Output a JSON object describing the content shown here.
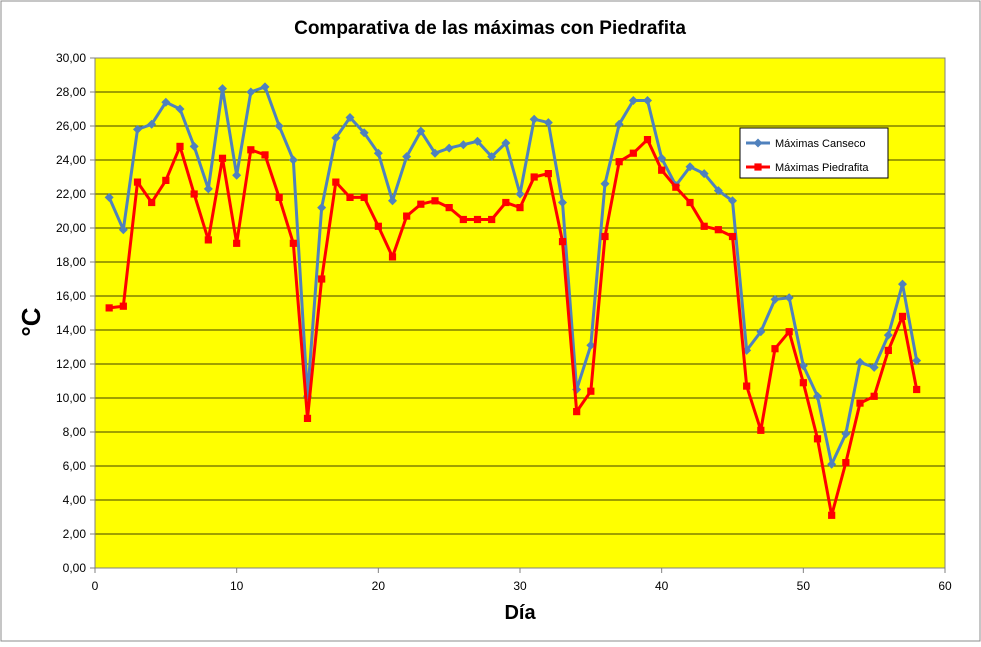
{
  "chart_data": {
    "type": "line",
    "title": "Comparativa de las máximas con Piedrafita",
    "xlabel": "Día",
    "ylabel": "°C",
    "xlim": [
      0,
      60
    ],
    "ylim": [
      0,
      30
    ],
    "x_ticks": [
      0,
      10,
      20,
      30,
      40,
      50,
      60
    ],
    "x_tick_labels": [
      "0",
      "10",
      "20",
      "30",
      "40",
      "50",
      "60"
    ],
    "y_ticks": [
      0,
      2,
      4,
      6,
      8,
      10,
      12,
      14,
      16,
      18,
      20,
      22,
      24,
      26,
      28,
      30
    ],
    "y_tick_labels": [
      "0,00",
      "2,00",
      "4,00",
      "6,00",
      "8,00",
      "10,00",
      "12,00",
      "14,00",
      "16,00",
      "18,00",
      "20,00",
      "22,00",
      "24,00",
      "26,00",
      "28,00",
      "30,00"
    ],
    "grid": "horizontal",
    "legend_position": "right",
    "plot_background": "#FFFF00",
    "x": [
      1,
      2,
      3,
      4,
      5,
      6,
      7,
      8,
      9,
      10,
      11,
      12,
      13,
      14,
      15,
      16,
      17,
      18,
      19,
      20,
      21,
      22,
      23,
      24,
      25,
      26,
      27,
      28,
      29,
      30,
      31,
      32,
      33,
      34,
      35,
      36,
      37,
      38,
      39,
      40,
      41,
      42,
      43,
      44,
      45,
      46,
      47,
      48,
      49,
      50,
      51,
      52,
      53,
      54,
      55,
      56,
      57,
      58
    ],
    "series": [
      {
        "name": "Máximas Canseco",
        "color": "#4F81BD",
        "marker": "diamond",
        "values": [
          21.8,
          19.9,
          25.8,
          26.1,
          27.4,
          27.0,
          24.8,
          22.3,
          28.2,
          23.1,
          28.0,
          28.3,
          26.0,
          24.0,
          10.1,
          21.2,
          25.3,
          26.5,
          25.6,
          24.4,
          21.6,
          24.2,
          25.7,
          24.4,
          24.7,
          24.9,
          25.1,
          24.2,
          25.0,
          22.0,
          26.4,
          26.2,
          21.5,
          10.5,
          13.1,
          22.6,
          26.1,
          27.5,
          27.5,
          24.1,
          22.5,
          23.6,
          23.2,
          22.2,
          21.6,
          12.8,
          13.9,
          15.8,
          15.9,
          11.9,
          10.1,
          6.1,
          7.9,
          12.1,
          11.8,
          13.7,
          16.7,
          12.2
        ]
      },
      {
        "name": "Máximas Piedrafita",
        "color": "#FF0000",
        "marker": "square",
        "values": [
          15.3,
          15.4,
          22.7,
          21.5,
          22.8,
          24.8,
          22.0,
          19.3,
          24.1,
          19.1,
          24.6,
          24.3,
          21.8,
          19.1,
          8.8,
          17.0,
          22.7,
          21.8,
          21.8,
          20.1,
          18.3,
          20.7,
          21.4,
          21.6,
          21.2,
          20.5,
          20.5,
          20.5,
          21.5,
          21.2,
          23.0,
          23.2,
          19.2,
          9.2,
          10.4,
          19.5,
          23.9,
          24.4,
          25.2,
          23.4,
          22.4,
          21.5,
          20.1,
          19.9,
          19.5,
          10.7,
          8.1,
          12.9,
          13.9,
          10.9,
          7.6,
          3.1,
          6.2,
          9.7,
          10.1,
          12.8,
          14.8,
          10.5
        ]
      }
    ]
  }
}
